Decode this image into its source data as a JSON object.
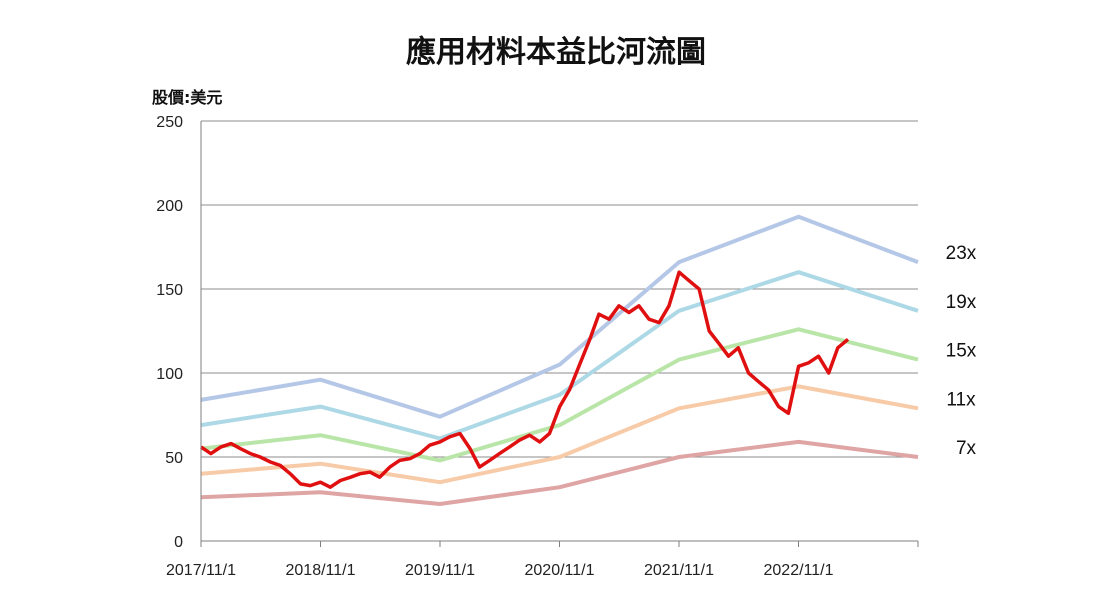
{
  "chart_data": {
    "type": "line",
    "title": "應用材料本益比河流圖",
    "ylabel": "股價:美元",
    "xlabel": "",
    "ylim": [
      0,
      250
    ],
    "yticks": [
      0,
      50,
      100,
      150,
      200,
      250
    ],
    "xlim": [
      "2017/11/1",
      "2023/11/1"
    ],
    "xticks": [
      "2017/11/1",
      "2018/11/1",
      "2019/11/1",
      "2020/11/1",
      "2021/11/1",
      "2022/11/1",
      ""
    ],
    "grid": "horizontal",
    "bands": [
      {
        "name": "23x",
        "color": "#b4c7e7",
        "x": [
          "2017/11/1",
          "2018/11/1",
          "2019/11/1",
          "2020/11/1",
          "2021/11/1",
          "2022/11/1",
          "2023/11/1"
        ],
        "values": [
          84,
          96,
          74,
          105,
          166,
          193,
          166
        ]
      },
      {
        "name": "19x",
        "color": "#add8e6",
        "x": [
          "2017/11/1",
          "2018/11/1",
          "2019/11/1",
          "2020/11/1",
          "2021/11/1",
          "2022/11/1",
          "2023/11/1"
        ],
        "values": [
          69,
          80,
          61,
          87,
          137,
          160,
          137
        ]
      },
      {
        "name": "15x",
        "color": "#b9e6a8",
        "x": [
          "2017/11/1",
          "2018/11/1",
          "2019/11/1",
          "2020/11/1",
          "2021/11/1",
          "2022/11/1",
          "2023/11/1"
        ],
        "values": [
          55,
          63,
          48,
          69,
          108,
          126,
          108
        ]
      },
      {
        "name": "11x",
        "color": "#f8cba8",
        "x": [
          "2017/11/1",
          "2018/11/1",
          "2019/11/1",
          "2020/11/1",
          "2021/11/1",
          "2022/11/1",
          "2023/11/1"
        ],
        "values": [
          40,
          46,
          35,
          50,
          79,
          92,
          79
        ]
      },
      {
        "name": "7x",
        "color": "#dfa4a4",
        "x": [
          "2017/11/1",
          "2018/11/1",
          "2019/11/1",
          "2020/11/1",
          "2021/11/1",
          "2022/11/1",
          "2023/11/1"
        ],
        "values": [
          26,
          29,
          22,
          32,
          50,
          59,
          50
        ]
      }
    ],
    "price": {
      "color": "#e01010",
      "x": [
        "2017/11/1",
        "2017/12/1",
        "2018/1/1",
        "2018/2/1",
        "2018/3/1",
        "2018/4/1",
        "2018/5/1",
        "2018/6/1",
        "2018/7/1",
        "2018/8/1",
        "2018/9/1",
        "2018/10/1",
        "2018/11/1",
        "2018/12/1",
        "2019/1/1",
        "2019/2/1",
        "2019/3/1",
        "2019/4/1",
        "2019/5/1",
        "2019/6/1",
        "2019/7/1",
        "2019/8/1",
        "2019/9/1",
        "2019/10/1",
        "2019/11/1",
        "2019/12/1",
        "2020/1/1",
        "2020/2/1",
        "2020/3/1",
        "2020/4/1",
        "2020/5/1",
        "2020/6/1",
        "2020/7/1",
        "2020/8/1",
        "2020/9/1",
        "2020/10/1",
        "2020/11/1",
        "2020/12/1",
        "2021/1/1",
        "2021/2/1",
        "2021/3/1",
        "2021/4/1",
        "2021/5/1",
        "2021/6/1",
        "2021/7/1",
        "2021/8/1",
        "2021/9/1",
        "2021/10/1",
        "2021/11/1",
        "2021/12/1",
        "2022/1/1",
        "2022/2/1",
        "2022/3/1",
        "2022/4/1",
        "2022/5/1",
        "2022/6/1",
        "2022/7/1",
        "2022/8/1",
        "2022/9/1",
        "2022/10/1",
        "2022/11/1",
        "2022/12/1",
        "2023/1/1",
        "2023/2/1",
        "2023/3/1",
        "2023/4/1"
      ],
      "values": [
        56,
        52,
        56,
        58,
        55,
        52,
        50,
        47,
        45,
        40,
        34,
        33,
        35,
        32,
        36,
        38,
        40,
        41,
        38,
        44,
        48,
        49,
        52,
        57,
        59,
        62,
        64,
        55,
        44,
        48,
        52,
        56,
        60,
        63,
        59,
        64,
        80,
        90,
        105,
        120,
        135,
        132,
        140,
        136,
        140,
        132,
        130,
        140,
        160,
        155,
        150,
        125,
        118,
        110,
        115,
        100,
        95,
        90,
        80,
        76,
        104,
        106,
        110,
        100,
        115,
        120
      ]
    }
  }
}
